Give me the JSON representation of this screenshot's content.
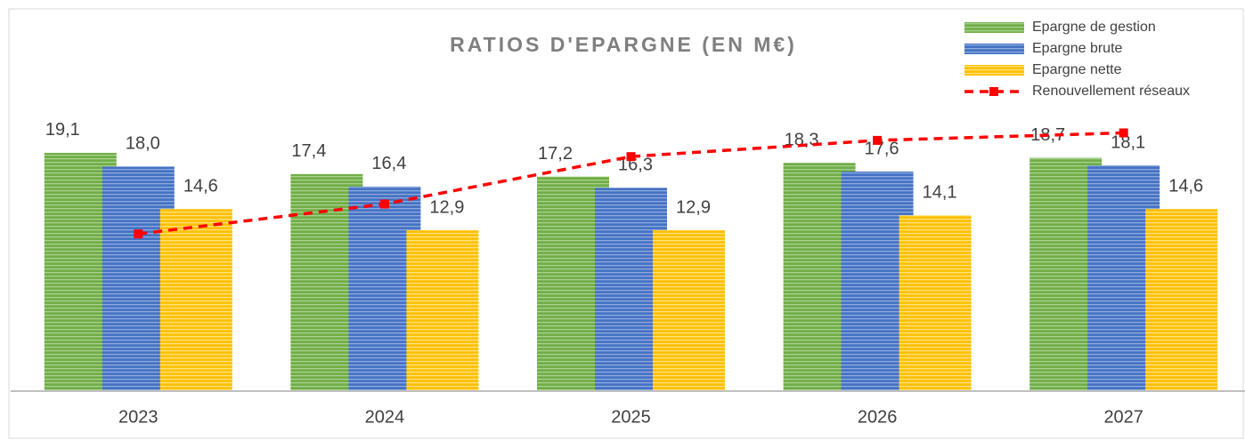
{
  "chart_data": {
    "type": "bar",
    "title": "RATIOS D'EPARGNE (EN M€)",
    "categories": [
      "2023",
      "2024",
      "2025",
      "2026",
      "2027"
    ],
    "series": [
      {
        "name": "Epargne de gestion",
        "type": "bar",
        "color": "#70ad47",
        "values": [
          19.1,
          17.4,
          17.2,
          18.3,
          18.7
        ],
        "value_labels": [
          "19,1",
          "17,4",
          "17,2",
          "18,3",
          "18,7"
        ]
      },
      {
        "name": "Epargne brute",
        "type": "bar",
        "color": "#4472c4",
        "values": [
          18.0,
          16.4,
          16.3,
          17.6,
          18.1
        ],
        "value_labels": [
          "18,0",
          "16,4",
          "16,3",
          "17,6",
          "18,1"
        ]
      },
      {
        "name": "Epargne nette",
        "type": "bar",
        "color": "#ffc000",
        "values": [
          14.6,
          12.9,
          12.9,
          14.1,
          14.6
        ],
        "value_labels": [
          "14,6",
          "12,9",
          "12,9",
          "14,1",
          "14,6"
        ]
      },
      {
        "name": "Renouvellement réseaux",
        "type": "line",
        "color": "#ff0000",
        "values": [
          12.6,
          15.0,
          18.8,
          20.1,
          20.7
        ]
      }
    ],
    "ylim": [
      0,
      30
    ],
    "legend": "top-right"
  }
}
